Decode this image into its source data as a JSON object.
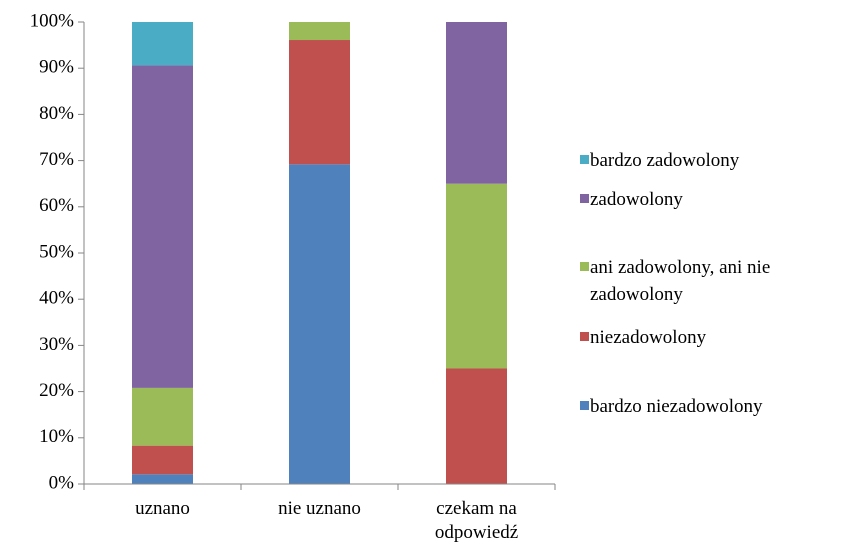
{
  "chart_data": {
    "type": "stacked_bar",
    "categories": [
      "uznano",
      "nie uznano",
      "czekam na odpowiedź"
    ],
    "series": [
      {
        "name": "bardzo niezadowolony",
        "color": "#4f81bd",
        "values": [
          2.1,
          69.2,
          0
        ]
      },
      {
        "name": "niezadowolony",
        "color": "#c0504d",
        "values": [
          6.2,
          26.9,
          25
        ]
      },
      {
        "name": "ani zadowolony, ani nie zadowolony",
        "color": "#9bbb59",
        "values": [
          12.5,
          3.9,
          40
        ]
      },
      {
        "name": "zadowolony",
        "color": "#8064a2",
        "values": [
          69.8,
          0,
          35
        ]
      },
      {
        "name": "bardzo zadowolony",
        "color": "#4bacc6",
        "values": [
          9.4,
          0,
          0
        ]
      }
    ],
    "ylim": [
      0,
      100
    ],
    "yticks": [
      {
        "value": 0,
        "label": "0%"
      },
      {
        "value": 10,
        "label": "10%"
      },
      {
        "value": 20,
        "label": "20%"
      },
      {
        "value": 30,
        "label": "30%"
      },
      {
        "value": 40,
        "label": "40%"
      },
      {
        "value": 50,
        "label": "50%"
      },
      {
        "value": 60,
        "label": "60%"
      },
      {
        "value": 70,
        "label": "70%"
      },
      {
        "value": 80,
        "label": "80%"
      },
      {
        "value": 90,
        "label": "90%"
      },
      {
        "value": 100,
        "label": "100%"
      }
    ],
    "legend": "right"
  }
}
